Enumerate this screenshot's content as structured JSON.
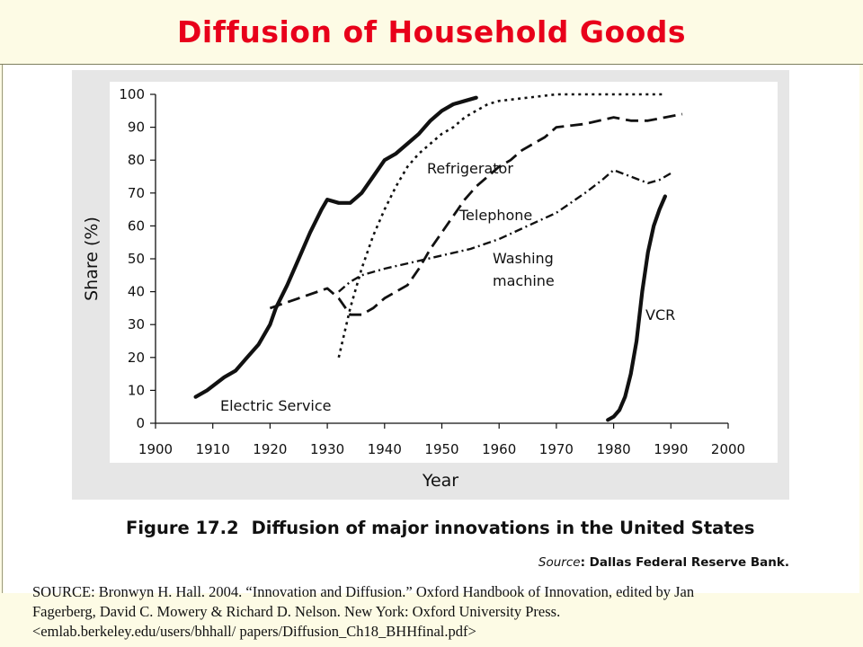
{
  "slide": {
    "title": "Diffusion of Household Goods"
  },
  "figure": {
    "caption_number": "Figure 17.2",
    "caption_text": "Diffusion of major innovations in the United States",
    "source_label": "Source",
    "source_text": ": Dallas Federal Reserve Bank."
  },
  "citation": {
    "line1": "SOURCE: Bronwyn H. Hall. 2004. “Innovation and Diffusion.” Oxford Handbook of Innovation, edited by Jan",
    "line2": "Fagerberg, David C. Mowery & Richard D. Nelson. New York: Oxford University Press.",
    "line3": "<emlab.berkeley.edu/users/bhhall/ papers/Diffusion_Ch18_BHHfinal.pdf>"
  },
  "colors": {
    "title": "#e8001a",
    "ink": "#111111",
    "plot_background": "#ffffff",
    "panel_background": "#e6e6e6",
    "slide_background": "#fdfbe5"
  },
  "chart_data": {
    "type": "line",
    "xlabel": "Year",
    "ylabel": "Share (%)",
    "xlim": [
      1900,
      2000
    ],
    "ylim": [
      0,
      100
    ],
    "xticks": [
      1900,
      1910,
      1920,
      1930,
      1940,
      1950,
      1960,
      1970,
      1980,
      1990,
      2000
    ],
    "yticks": [
      0,
      10,
      20,
      30,
      40,
      50,
      60,
      70,
      80,
      90,
      100
    ],
    "grid": false,
    "legend": "inline labels",
    "series": [
      {
        "name": "Electric Service",
        "style": "solid-thick",
        "x": [
          1907,
          1909,
          1912,
          1914,
          1916,
          1918,
          1920,
          1921,
          1923,
          1925,
          1927,
          1929,
          1930,
          1932,
          1934,
          1936,
          1938,
          1940,
          1942,
          1944,
          1946,
          1948,
          1950,
          1952,
          1954,
          1956
        ],
        "y": [
          8,
          10,
          14,
          16,
          20,
          24,
          30,
          35,
          42,
          50,
          58,
          65,
          68,
          67,
          67,
          70,
          75,
          80,
          82,
          85,
          88,
          92,
          95,
          97,
          98,
          99
        ]
      },
      {
        "name": "Refrigerator",
        "style": "dotted",
        "x": [
          1932,
          1934,
          1936,
          1938,
          1940,
          1942,
          1944,
          1946,
          1948,
          1950,
          1952,
          1954,
          1956,
          1958,
          1960,
          1965,
          1970,
          1975,
          1980,
          1985,
          1989
        ],
        "y": [
          20,
          35,
          47,
          57,
          65,
          72,
          78,
          82,
          85,
          88,
          90,
          93,
          95,
          97,
          98,
          99,
          100,
          100,
          100,
          100,
          100
        ]
      },
      {
        "name": "Telephone",
        "style": "long-dash",
        "x": [
          1920,
          1925,
          1930,
          1932,
          1934,
          1936,
          1938,
          1940,
          1942,
          1944,
          1946,
          1948,
          1950,
          1952,
          1954,
          1956,
          1958,
          1960,
          1962,
          1964,
          1966,
          1968,
          1970,
          1975,
          1980,
          1983,
          1986,
          1989,
          1992
        ],
        "y": [
          35,
          38,
          41,
          38,
          33,
          33,
          35,
          38,
          40,
          42,
          47,
          53,
          58,
          63,
          68,
          72,
          75,
          78,
          80,
          83,
          85,
          87,
          90,
          91,
          93,
          92,
          92,
          93,
          94
        ]
      },
      {
        "name": "Washing machine",
        "style": "dash-dot",
        "x": [
          1932,
          1934,
          1936,
          1938,
          1940,
          1945,
          1950,
          1955,
          1960,
          1965,
          1970,
          1975,
          1978,
          1980,
          1983,
          1986,
          1988,
          1990
        ],
        "y": [
          40,
          43,
          45,
          46,
          47,
          49,
          51,
          53,
          56,
          60,
          64,
          70,
          74,
          77,
          75,
          73,
          74,
          76
        ]
      },
      {
        "name": "VCR",
        "style": "solid-thick",
        "x": [
          1979,
          1980,
          1981,
          1982,
          1983,
          1984,
          1985,
          1986,
          1987,
          1988,
          1989
        ],
        "y": [
          1,
          2,
          4,
          8,
          15,
          25,
          40,
          52,
          60,
          65,
          69
        ]
      }
    ]
  }
}
